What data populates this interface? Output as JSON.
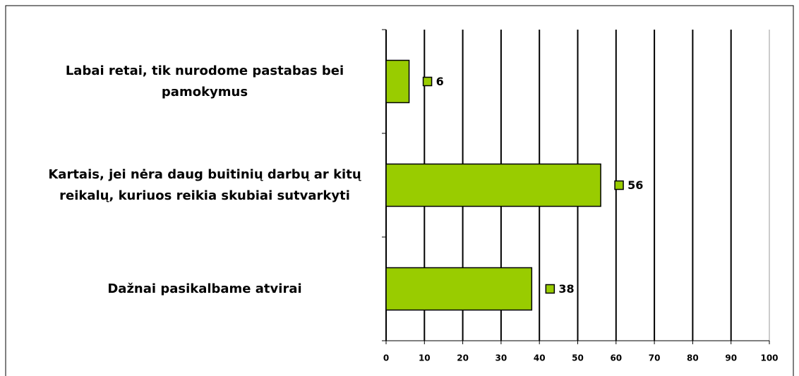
{
  "chart_data": {
    "type": "bar",
    "orientation": "horizontal",
    "categories": [
      "Labai retai, tik nurodome pastabas bei pamokymus",
      "Kartais, jei nėra daug buitinių darbų ar kitų reikalų, kuriuos reikia skubiai sutvarkyti",
      "Dažnai pasikalbame atvirai"
    ],
    "values": [
      6,
      56,
      38
    ],
    "color": "#99cc00",
    "xlim": [
      0,
      100
    ],
    "xticks": [
      0,
      10,
      20,
      30,
      40,
      50,
      60,
      70,
      80,
      90,
      100
    ],
    "grid": true
  }
}
